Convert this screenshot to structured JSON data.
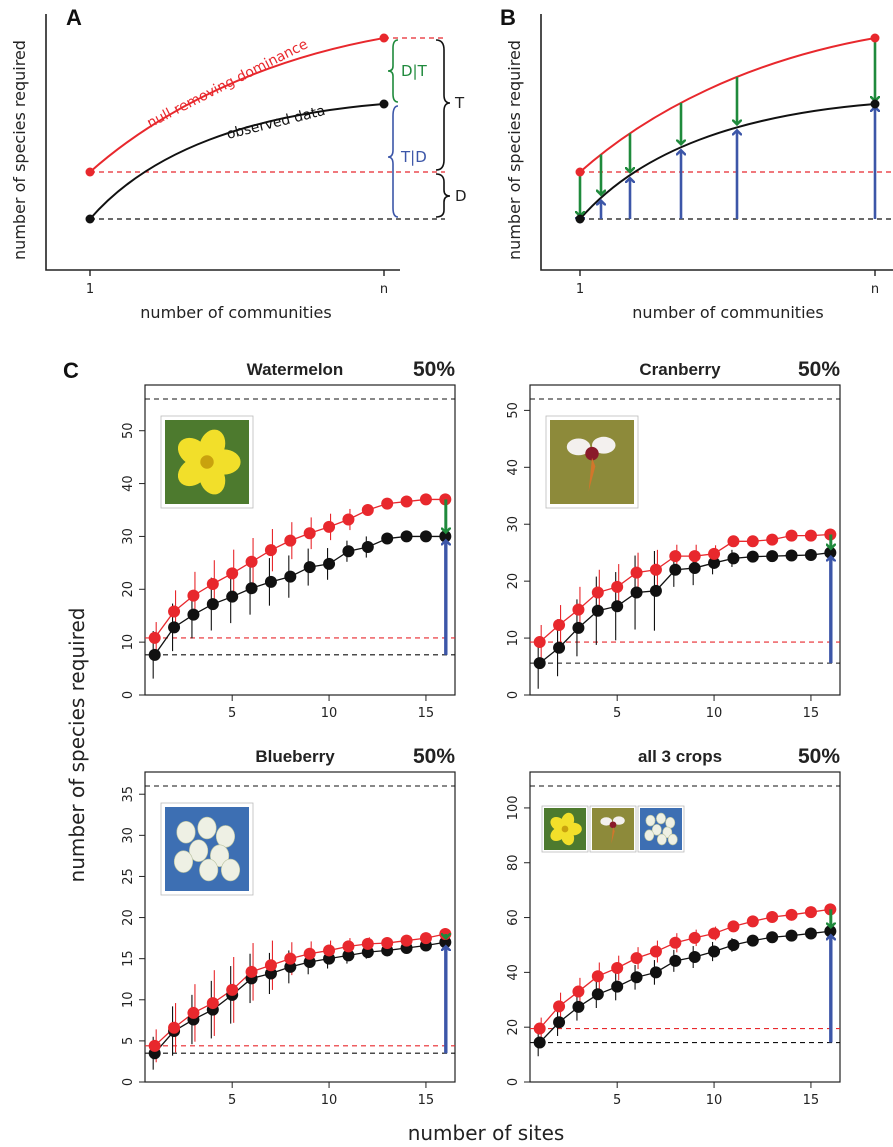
{
  "panel_a": {
    "letter": "A",
    "ylabel": "number of species required",
    "xlabel": "number of communities",
    "x_ticks": [
      "1",
      "n"
    ],
    "null_label": "null removing dominance",
    "observed_label": "observed data",
    "labels": {
      "dt": "D|T",
      "td": "T|D",
      "t": "T",
      "d": "D"
    }
  },
  "panel_b": {
    "letter": "B",
    "ylabel": "number of species required",
    "xlabel": "number of communities",
    "x_ticks": [
      "1",
      "n"
    ]
  },
  "panel_c": {
    "letter": "C",
    "shared_ylabel": "number of species required",
    "shared_xlabel": "number of sites"
  },
  "colors": {
    "null": "#e8282d",
    "observed": "#111111",
    "green_arrow": "#1f8a3c",
    "blue_arrow": "#3c56a8"
  },
  "chart_data": [
    {
      "type": "line",
      "title": "Watermelon",
      "percent": "50%",
      "image": "watermelon flower",
      "ylim": [
        0,
        56
      ],
      "yticks": [
        0,
        10,
        20,
        30,
        40,
        50
      ],
      "xlim": [
        0.5,
        16.5
      ],
      "xticks": [
        5,
        10,
        15
      ],
      "x": [
        1,
        2,
        3,
        4,
        5,
        6,
        7,
        8,
        9,
        10,
        11,
        12,
        13,
        14,
        15,
        16
      ],
      "series": [
        {
          "name": "null",
          "values": [
            10.8,
            15.8,
            18.8,
            21,
            23,
            25.2,
            27.4,
            29.2,
            30.6,
            31.8,
            33.2,
            35,
            36.2,
            36.6,
            37,
            37
          ],
          "err": [
            3,
            4,
            4.5,
            4.5,
            4.5,
            4.5,
            4,
            3.5,
            3,
            2.5,
            2,
            0,
            0,
            0,
            0,
            0
          ]
        },
        {
          "name": "observed",
          "values": [
            7.6,
            12.8,
            15.2,
            17.2,
            18.6,
            20.2,
            21.4,
            22.4,
            24.2,
            24.8,
            27.2,
            28,
            29.6,
            30,
            30,
            30
          ],
          "err": [
            4.5,
            4.5,
            4.5,
            5,
            5,
            5,
            4.5,
            4,
            3.5,
            3,
            2,
            2,
            0,
            0,
            0,
            0
          ]
        }
      ],
      "null_line": 56,
      "null_first": 10.8,
      "obs_first": 7.6
    },
    {
      "type": "line",
      "title": "Cranberry",
      "percent": "50%",
      "image": "cranberry flower",
      "ylim": [
        0,
        52
      ],
      "yticks": [
        0,
        10,
        20,
        30,
        40,
        50
      ],
      "xlim": [
        0.5,
        16.5
      ],
      "xticks": [
        5,
        10,
        15
      ],
      "x": [
        1,
        2,
        3,
        4,
        5,
        6,
        7,
        8,
        9,
        10,
        11,
        12,
        13,
        14,
        15,
        16
      ],
      "series": [
        {
          "name": "null",
          "values": [
            9.3,
            12.3,
            15,
            18,
            19,
            21.5,
            22,
            24.4,
            24.4,
            24.8,
            27,
            27,
            27.3,
            28,
            28,
            28.2
          ],
          "err": [
            3,
            3.5,
            4,
            4,
            4,
            3.5,
            3.5,
            2,
            2,
            1.5,
            1,
            0,
            0,
            0,
            0,
            0
          ]
        },
        {
          "name": "observed",
          "values": [
            5.6,
            8.3,
            11.8,
            14.8,
            15.6,
            18,
            18.3,
            22,
            22.3,
            23.2,
            24,
            24.3,
            24.4,
            24.5,
            24.6,
            25
          ],
          "err": [
            4.5,
            5,
            5,
            6,
            6,
            6.5,
            7,
            3,
            3,
            2,
            1.5,
            1,
            1,
            0.5,
            0,
            0
          ]
        }
      ],
      "null_line": 52,
      "null_first": 9.3,
      "obs_first": 5.6
    },
    {
      "type": "line",
      "title": "Blueberry",
      "percent": "50%",
      "image": "blueberry flower",
      "ylim": [
        0,
        36
      ],
      "yticks": [
        0,
        5,
        10,
        15,
        20,
        25,
        30,
        35
      ],
      "xlim": [
        0.5,
        16.5
      ],
      "xticks": [
        5,
        10,
        15
      ],
      "x": [
        1,
        2,
        3,
        4,
        5,
        6,
        7,
        8,
        9,
        10,
        11,
        12,
        13,
        14,
        15,
        16
      ],
      "series": [
        {
          "name": "null",
          "values": [
            4.4,
            6.6,
            8.4,
            9.6,
            11.2,
            13.4,
            14.2,
            15,
            15.6,
            16,
            16.5,
            16.8,
            16.9,
            17.2,
            17.5,
            18
          ],
          "err": [
            2,
            3,
            3.5,
            4,
            4,
            3.5,
            3,
            2,
            1.5,
            1.2,
            1,
            0.8,
            0.5,
            0.4,
            0.3,
            0
          ]
        },
        {
          "name": "observed",
          "values": [
            3.5,
            6.2,
            7.6,
            8.8,
            10.6,
            12.6,
            13.2,
            14,
            14.6,
            15,
            15.4,
            15.8,
            16,
            16.3,
            16.6,
            17
          ],
          "err": [
            2,
            3,
            3,
            3.5,
            3.5,
            3,
            2.5,
            2,
            1.5,
            1.2,
            1,
            0.8,
            0.5,
            0.4,
            0.3,
            0
          ]
        }
      ],
      "null_line": 36,
      "null_first": 4.4,
      "obs_first": 3.5
    },
    {
      "type": "line",
      "title": "all 3 crops",
      "percent": "50%",
      "image": "all three flowers",
      "ylim": [
        0,
        108
      ],
      "yticks": [
        0,
        20,
        40,
        60,
        80,
        100
      ],
      "xlim": [
        0.5,
        16.5
      ],
      "xticks": [
        5,
        10,
        15
      ],
      "x": [
        1,
        2,
        3,
        4,
        5,
        6,
        7,
        8,
        9,
        10,
        11,
        12,
        13,
        14,
        15,
        16
      ],
      "series": [
        {
          "name": "null",
          "values": [
            19.5,
            27.6,
            33,
            38.6,
            41.6,
            45.2,
            47.6,
            50.8,
            52.6,
            54.2,
            56.8,
            58.6,
            60.2,
            61,
            62,
            63
          ],
          "err": [
            4,
            5,
            5,
            5,
            4.5,
            4,
            4,
            3.5,
            3,
            2.5,
            2,
            1.5,
            1,
            0.5,
            0,
            0
          ]
        },
        {
          "name": "observed",
          "values": [
            14.4,
            21.8,
            27.4,
            32,
            34.8,
            38.2,
            40,
            44.2,
            45.6,
            47.6,
            50,
            51.6,
            52.8,
            53.4,
            54.2,
            55
          ],
          "err": [
            5,
            5,
            5,
            5,
            5,
            4.5,
            4.5,
            4,
            4,
            3.5,
            2.5,
            2,
            1.5,
            1,
            0.5,
            0
          ]
        }
      ],
      "null_line": 108,
      "null_first": 19.5,
      "obs_first": 14.4
    }
  ]
}
